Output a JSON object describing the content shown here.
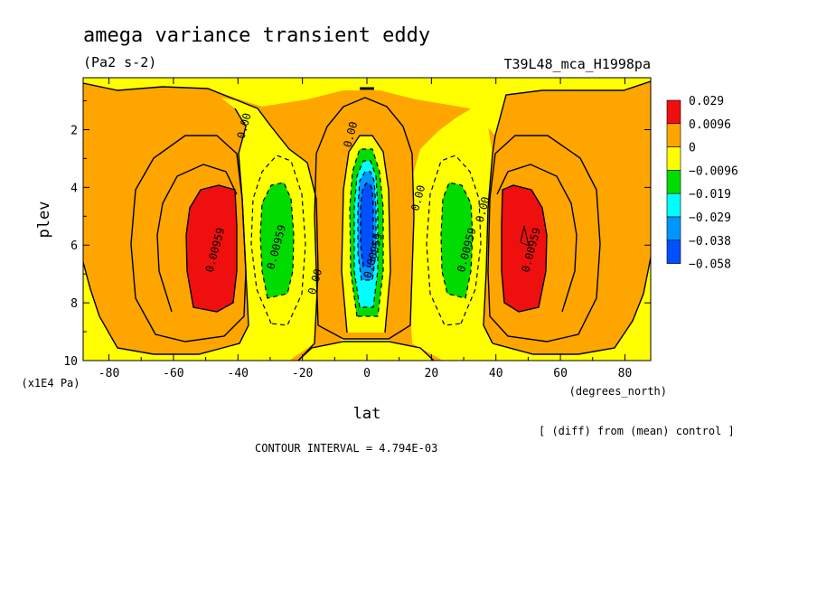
{
  "header": {
    "title": "amega variance transient eddy",
    "units": "(Pa2 s-2)",
    "run_id": "T39L48_mca_H1998pa"
  },
  "footer": {
    "diff_note": "[ (diff) from (mean) control ]",
    "contour_interval": "CONTOUR INTERVAL = 4.794E-03"
  },
  "colors": {
    "red": "#f00f0f",
    "orange": "#ffa500",
    "yellow": "#ffff00",
    "green": "#00dc00",
    "cyan": "#00ffff",
    "lightblue": "#0096ff",
    "blue": "#0050ff"
  },
  "chart_data": {
    "type": "contour",
    "xlabel": "lat",
    "x_units": "(degrees_north)",
    "ylabel": "plev",
    "y_units": "(x1E4 Pa)",
    "xlim": [
      -88,
      88
    ],
    "ylim": [
      10,
      0.2
    ],
    "x_ticks": [
      {
        "value": -80,
        "label": "-80"
      },
      {
        "value": -60,
        "label": "-60"
      },
      {
        "value": -40,
        "label": "-40"
      },
      {
        "value": -20,
        "label": "-20"
      },
      {
        "value": 0,
        "label": "0"
      },
      {
        "value": 20,
        "label": "20"
      },
      {
        "value": 40,
        "label": "40"
      },
      {
        "value": 60,
        "label": "60"
      },
      {
        "value": 80,
        "label": "80"
      }
    ],
    "y_ticks": [
      {
        "value": 2,
        "label": "2"
      },
      {
        "value": 4,
        "label": "4"
      },
      {
        "value": 6,
        "label": "6"
      },
      {
        "value": 8,
        "label": "8"
      },
      {
        "value": 10,
        "label": "10"
      }
    ],
    "colorbar": [
      {
        "label": "0.029",
        "color": "#f00f0f"
      },
      {
        "label": "0.0096",
        "color": "#ffa500"
      },
      {
        "label": "0",
        "color": "#ffff00"
      },
      {
        "label": "−0.0096",
        "color": "#00dc00"
      },
      {
        "label": "−0.019",
        "color": "#00ffff"
      },
      {
        "label": "−0.029",
        "color": "#0096ff"
      },
      {
        "label": "−0.038",
        "color": "#0050ff"
      },
      {
        "label": "−0.058",
        "color": null
      }
    ],
    "contour_labels": [
      {
        "text": "0.00959",
        "lat": -46,
        "plev": 6.2
      },
      {
        "text": "0.00959",
        "lat": -27,
        "plev": 6.1
      },
      {
        "text": "0.00",
        "lat": -15,
        "plev": 7.3
      },
      {
        "text": "0.00",
        "lat": -37,
        "plev": 1.9
      },
      {
        "text": "0.00",
        "lat": -4,
        "plev": 2.2
      },
      {
        "text": "0.00959",
        "lat": 3,
        "plev": 6.4
      },
      {
        "text": "0.00",
        "lat": 17,
        "plev": 4.4
      },
      {
        "text": "0.00959",
        "lat": 32,
        "plev": 6.2
      },
      {
        "text": "0.00",
        "lat": 37,
        "plev": 4.8
      },
      {
        "text": "0.00959",
        "lat": 52,
        "plev": 6.2
      }
    ]
  }
}
